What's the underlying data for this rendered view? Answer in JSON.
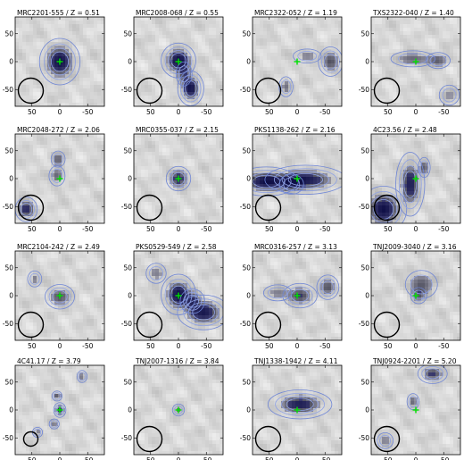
{
  "figure": {
    "x_tick_labels": [
      "50",
      "0",
      "-50"
    ],
    "y_tick_labels": [
      "50",
      "0",
      "-50"
    ],
    "x_ticks": [
      50,
      0,
      -50
    ],
    "y_ticks": [
      50,
      0,
      -50
    ],
    "axis_range": [
      80,
      -80
    ],
    "panels": [
      {
        "id": "p1",
        "title": "MRC2201-555 / Z = 0.51",
        "beam_radius": 14,
        "blobs": [
          {
            "x": 0,
            "y": 0,
            "sx": 14,
            "sy": 16,
            "a": 1.0
          }
        ]
      },
      {
        "id": "p2",
        "title": "MRC2008-068 / Z = 0.55",
        "beam_radius": 14,
        "blobs": [
          {
            "x": 0,
            "y": 2,
            "sx": 12,
            "sy": 12,
            "a": 1.0
          },
          {
            "x": -22,
            "y": -48,
            "sx": 9,
            "sy": 12,
            "a": 0.95
          },
          {
            "x": -10,
            "y": -22,
            "sx": 8,
            "sy": 12,
            "a": 0.5
          }
        ]
      },
      {
        "id": "p3",
        "title": "MRC2322-052 / Z = 1.19",
        "beam_radius": 14,
        "blobs": [
          {
            "x": -60,
            "y": 0,
            "sx": 10,
            "sy": 12,
            "a": 0.55
          },
          {
            "x": -18,
            "y": 10,
            "sx": 14,
            "sy": 7,
            "a": 0.35
          },
          {
            "x": 20,
            "y": -45,
            "sx": 7,
            "sy": 10,
            "a": 0.4
          }
        ]
      },
      {
        "id": "p4",
        "title": "TXS2322-040 / Z = 1.40",
        "beam_radius": 14,
        "blobs": [
          {
            "x": 5,
            "y": 5,
            "sx": 22,
            "sy": 8,
            "a": 0.45
          },
          {
            "x": -40,
            "y": 2,
            "sx": 12,
            "sy": 8,
            "a": 0.45
          },
          {
            "x": -60,
            "y": -60,
            "sx": 10,
            "sy": 10,
            "a": 0.3
          }
        ]
      },
      {
        "id": "p5",
        "title": "MRC2048-272 / Z = 2.06",
        "beam_radius": 14,
        "blobs": [
          {
            "x": 3,
            "y": 35,
            "sx": 7,
            "sy": 8,
            "a": 0.5
          },
          {
            "x": 5,
            "y": 5,
            "sx": 8,
            "sy": 10,
            "a": 0.45
          },
          {
            "x": 60,
            "y": -55,
            "sx": 9,
            "sy": 10,
            "a": 0.75
          }
        ]
      },
      {
        "id": "p6",
        "title": "MRC0355-037 / Z = 2.15",
        "beam_radius": 14,
        "blobs": [
          {
            "x": 0,
            "y": 0,
            "sx": 10,
            "sy": 10,
            "a": 0.7
          }
        ]
      },
      {
        "id": "p7",
        "title": "PKS1138-262 / Z = 2.16",
        "beam_radius": 14,
        "blobs": [
          {
            "x": 55,
            "y": -5,
            "sx": 22,
            "sy": 10,
            "a": 1.0
          },
          {
            "x": -15,
            "y": -2,
            "sx": 28,
            "sy": 10,
            "a": 0.9
          },
          {
            "x": 10,
            "y": -10,
            "sx": 12,
            "sy": 10,
            "a": 0.5
          }
        ]
      },
      {
        "id": "p8",
        "title": "4C23.56 / Z = 2.48",
        "beam_radius": 14,
        "blobs": [
          {
            "x": 58,
            "y": -55,
            "sx": 16,
            "sy": 16,
            "a": 1.0
          },
          {
            "x": 10,
            "y": -10,
            "sx": 10,
            "sy": 22,
            "a": 0.85
          },
          {
            "x": -15,
            "y": 20,
            "sx": 6,
            "sy": 10,
            "a": 0.5
          }
        ]
      },
      {
        "id": "p9",
        "title": "MRC2104-242 / Z = 2.49",
        "beam_radius": 14,
        "blobs": [
          {
            "x": 0,
            "y": -2,
            "sx": 12,
            "sy": 10,
            "a": 0.55
          },
          {
            "x": 45,
            "y": 30,
            "sx": 7,
            "sy": 8,
            "a": 0.35
          }
        ]
      },
      {
        "id": "p10",
        "title": "PKS0529-549 / Z = 2.58",
        "beam_radius": 14,
        "blobs": [
          {
            "x": 0,
            "y": 2,
            "sx": 12,
            "sy": 14,
            "a": 1.0
          },
          {
            "x": -45,
            "y": -30,
            "sx": 18,
            "sy": 12,
            "a": 0.9
          },
          {
            "x": 40,
            "y": 40,
            "sx": 10,
            "sy": 10,
            "a": 0.35
          },
          {
            "x": -25,
            "y": -10,
            "sx": 10,
            "sy": 10,
            "a": 0.6
          }
        ]
      },
      {
        "id": "p11",
        "title": "MRC0316-257 / Z = 3.13",
        "beam_radius": 14,
        "blobs": [
          {
            "x": -5,
            "y": 0,
            "sx": 14,
            "sy": 10,
            "a": 0.6
          },
          {
            "x": -55,
            "y": 15,
            "sx": 9,
            "sy": 10,
            "a": 0.55
          },
          {
            "x": 35,
            "y": 5,
            "sx": 14,
            "sy": 8,
            "a": 0.35
          }
        ]
      },
      {
        "id": "p12",
        "title": "TNJ2009-3040 / Z = 3.16",
        "beam_radius": 14,
        "blobs": [
          {
            "x": -10,
            "y": 20,
            "sx": 16,
            "sy": 14,
            "a": 0.5
          },
          {
            "x": -5,
            "y": 0,
            "sx": 8,
            "sy": 8,
            "a": 0.35
          }
        ]
      },
      {
        "id": "p13",
        "title": "4C41.17 / Z = 3.79",
        "beam_radius": 8,
        "blobs": [
          {
            "x": 0,
            "y": 0,
            "sx": 5,
            "sy": 6,
            "a": 0.65
          },
          {
            "x": -40,
            "y": 60,
            "sx": 5,
            "sy": 6,
            "a": 0.4
          },
          {
            "x": 5,
            "y": 25,
            "sx": 5,
            "sy": 5,
            "a": 0.5
          },
          {
            "x": 10,
            "y": -25,
            "sx": 5,
            "sy": 5,
            "a": 0.4
          },
          {
            "x": 40,
            "y": -40,
            "sx": 5,
            "sy": 5,
            "a": 0.35
          }
        ]
      },
      {
        "id": "p14",
        "title": "TNJ2007-1316 / Z = 3.84",
        "beam_radius": 14,
        "blobs": [
          {
            "x": 0,
            "y": 0,
            "sx": 6,
            "sy": 6,
            "a": 0.4
          }
        ]
      },
      {
        "id": "p15",
        "title": "TNJ1338-1942 / Z = 4.11",
        "beam_radius": 14,
        "blobs": [
          {
            "x": -5,
            "y": 10,
            "sx": 22,
            "sy": 10,
            "a": 0.85
          }
        ]
      },
      {
        "id": "p16",
        "title": "TNJ0924-2201 / Z = 5.20",
        "beam_radius": 14,
        "blobs": [
          {
            "x": -30,
            "y": 65,
            "sx": 12,
            "sy": 8,
            "a": 0.6
          },
          {
            "x": 5,
            "y": 15,
            "sx": 6,
            "sy": 8,
            "a": 0.45
          },
          {
            "x": 55,
            "y": -55,
            "sx": 8,
            "sy": 8,
            "a": 0.35
          }
        ]
      }
    ]
  }
}
